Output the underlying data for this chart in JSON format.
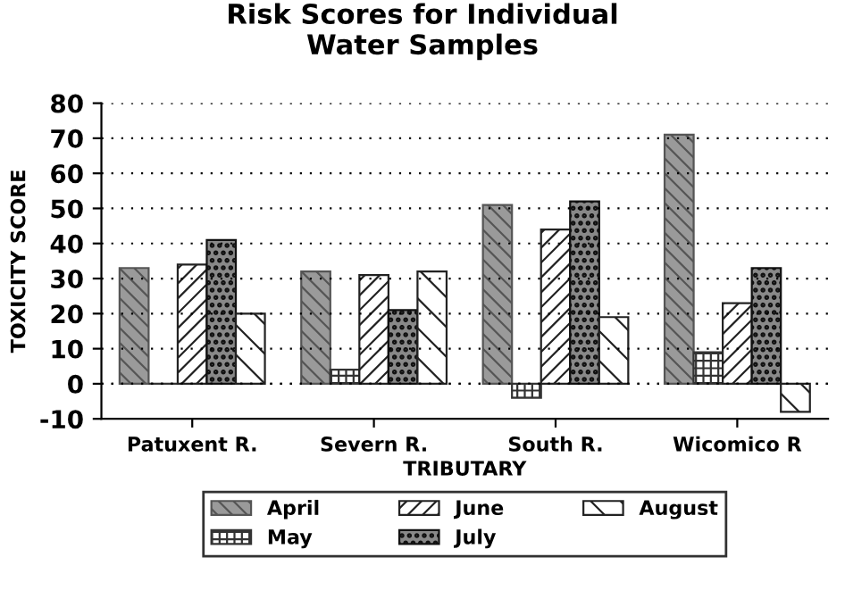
{
  "chart_data": {
    "type": "bar",
    "title": "Risk Scores for Individual\nWater Samples",
    "xlabel": "TRIBUTARY",
    "ylabel": "TOXICITY SCORE",
    "categories": [
      "Patuxent R.",
      "Severn R.",
      "South R.",
      "Wicomico R"
    ],
    "series": [
      {
        "name": "April",
        "color": "#555555",
        "values": [
          33,
          32,
          51,
          71
        ]
      },
      {
        "name": "May",
        "color": "#333333",
        "values": [
          0,
          4,
          -4,
          9
        ]
      },
      {
        "name": "June",
        "color": "#222222",
        "values": [
          34,
          31,
          44,
          23
        ]
      },
      {
        "name": "July",
        "color": "#111111",
        "values": [
          41,
          21,
          52,
          33
        ]
      },
      {
        "name": "August",
        "color": "#222222",
        "values": [
          20,
          32,
          19,
          -8
        ]
      }
    ],
    "ylim": [
      -10,
      80
    ],
    "yticks": [
      -10,
      0,
      10,
      20,
      30,
      40,
      50,
      60,
      70,
      80
    ],
    "grid": "y",
    "legend": "bottom"
  }
}
